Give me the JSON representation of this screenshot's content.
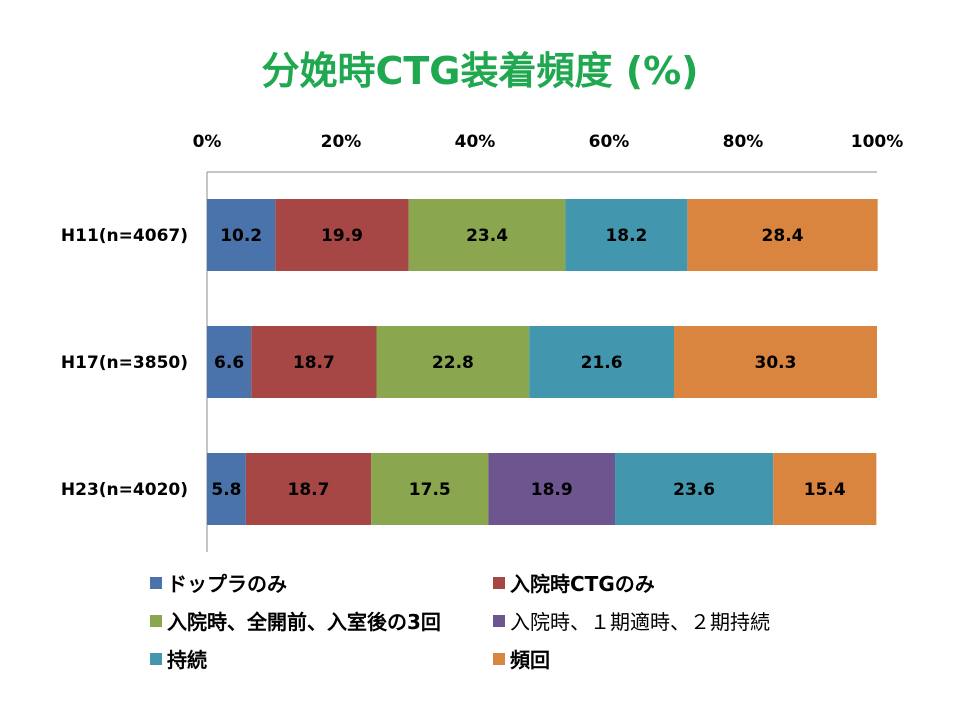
{
  "chart_data": {
    "type": "bar",
    "orientation": "horizontal",
    "stacked": true,
    "title": "分娩時CTG装着頻度 (%)",
    "xlim": [
      0,
      100
    ],
    "xticks": [
      "0%",
      "20%",
      "40%",
      "60%",
      "80%",
      "100%"
    ],
    "xaxis_position": "top",
    "legend_position": "bottom",
    "categories": [
      "H11(n=4067)",
      "H17(n=3850)",
      "H23(n=4020)"
    ],
    "series": [
      {
        "name": "ドップラのみ",
        "color": "#4a72ab",
        "values": [
          10.2,
          6.6,
          5.8
        ]
      },
      {
        "name": "入院時CTGのみ",
        "color": "#a64746",
        "values": [
          19.9,
          18.7,
          18.7
        ]
      },
      {
        "name": "入院時、全開前、入室後の3回",
        "color": "#8aa64e",
        "values": [
          23.4,
          22.8,
          17.5
        ]
      },
      {
        "name": "入院時、１期適時、２期持続",
        "color": "#6d5690",
        "values": [
          0,
          0,
          18.9
        ]
      },
      {
        "name": "持続",
        "color": "#4297ae",
        "values": [
          18.2,
          21.6,
          23.6
        ]
      },
      {
        "name": "頻回",
        "color": "#d9853f",
        "values": [
          28.4,
          30.3,
          15.4
        ]
      }
    ]
  }
}
